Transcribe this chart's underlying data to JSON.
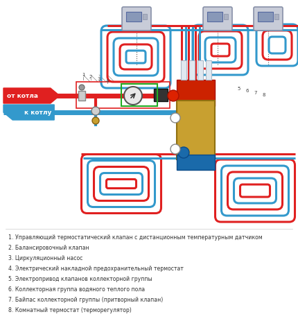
{
  "red": "#e02020",
  "blue": "#3399cc",
  "gold": "#c8a030",
  "gold2": "#b08820",
  "silver": "#b0b0b0",
  "dark": "#444444",
  "green_box": "#22aa22",
  "text_dark": "#333333",
  "thermostat_bg": "#c8ccd8",
  "thermostat_border": "#8890a8",
  "label_ot_kotla": "от котла",
  "label_k_kotlu": "к котлу",
  "legend": [
    "1. Управляющий термостатический клапан с дистанционным температурным датчиком",
    "2. Балансировочный клапан",
    "3. Циркуляционный насос",
    "4. Электрический накладной предохранительный термостат",
    "5. Электропривод клапанов коллекторной группы",
    "6. Коллекторная группа водяного теплого пола",
    "7. Байпас коллекторной группы (притворный клапан)",
    "8. Комнатный термостат (терморегулятор)"
  ]
}
